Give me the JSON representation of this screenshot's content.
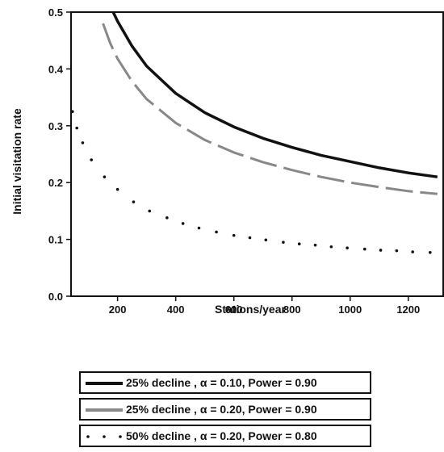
{
  "chart_data": {
    "type": "line",
    "xlabel": "Stations/year",
    "ylabel": "Initial visitation rate",
    "xlim": [
      40,
      1320
    ],
    "ylim": [
      0.0,
      0.5
    ],
    "xticks": [
      200,
      400,
      600,
      800,
      1000,
      1200
    ],
    "yticks": [
      "0.0",
      "0.1",
      "0.2",
      "0.3",
      "0.4",
      "0.5"
    ],
    "grid": false,
    "legend_position": "bottom",
    "series": [
      {
        "name": "25% decline , α = 0.10, Power = 0.90",
        "style": "solid",
        "color": "#111111",
        "x": [
          185,
          200,
          250,
          300,
          400,
          500,
          600,
          700,
          800,
          900,
          1000,
          1100,
          1200,
          1300
        ],
        "y": [
          0.5,
          0.484,
          0.44,
          0.405,
          0.357,
          0.323,
          0.298,
          0.278,
          0.262,
          0.248,
          0.237,
          0.226,
          0.217,
          0.21
        ]
      },
      {
        "name": "25% decline , α = 0.20, Power = 0.90",
        "style": "dashed",
        "color": "#888888",
        "x": [
          150,
          175,
          200,
          250,
          300,
          400,
          500,
          600,
          700,
          800,
          900,
          1000,
          1100,
          1200,
          1300
        ],
        "y": [
          0.48,
          0.445,
          0.418,
          0.378,
          0.347,
          0.305,
          0.275,
          0.253,
          0.236,
          0.222,
          0.21,
          0.2,
          0.192,
          0.185,
          0.18
        ]
      },
      {
        "name": "50% decline , α = 0.20, Power = 0.80",
        "style": "dotted",
        "color": "#111111",
        "x": [
          45,
          60,
          80,
          110,
          155,
          200,
          255,
          310,
          370,
          425,
          480,
          540,
          600,
          655,
          710,
          770,
          825,
          880,
          935,
          990,
          1050,
          1105,
          1160,
          1215,
          1275
        ],
        "y": [
          0.325,
          0.296,
          0.27,
          0.24,
          0.21,
          0.188,
          0.166,
          0.15,
          0.138,
          0.128,
          0.12,
          0.113,
          0.107,
          0.103,
          0.099,
          0.095,
          0.092,
          0.09,
          0.087,
          0.085,
          0.083,
          0.081,
          0.08,
          0.078,
          0.077
        ]
      }
    ]
  }
}
